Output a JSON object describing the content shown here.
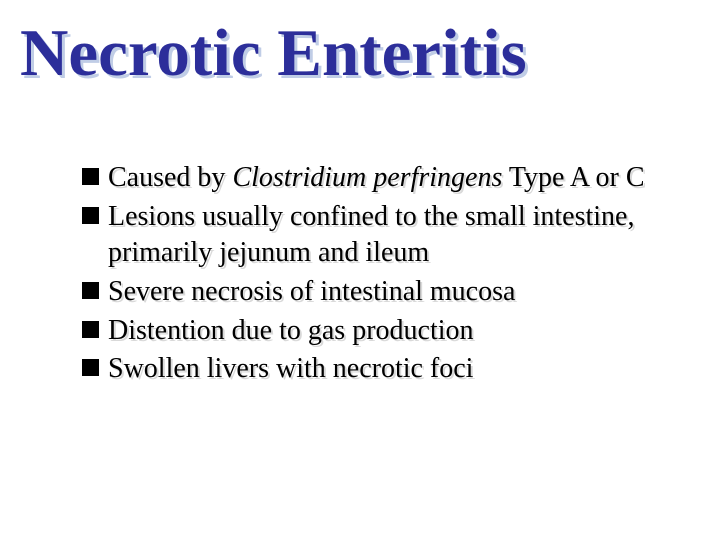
{
  "title": "Necrotic Enteritis",
  "title_color": "#2c2e9a",
  "title_shadow_color": "#c0cde6",
  "title_fontsize": 67,
  "body_fontsize": 28,
  "body_color": "#000000",
  "bullet_marker_color": "#000000",
  "text_shadow_color": "#d9d9d9",
  "background_color": "#ffffff",
  "bullets": [
    {
      "prefix": "Caused by ",
      "italic": "Clostridium perfringens",
      "suffix": " Type A or C"
    },
    {
      "text": "Lesions usually confined to the small intestine, primarily jejunum and ileum"
    },
    {
      "text": "Severe necrosis of intestinal mucosa"
    },
    {
      "text": "Distention due to gas production"
    },
    {
      "text": "Swollen livers with necrotic foci"
    }
  ]
}
